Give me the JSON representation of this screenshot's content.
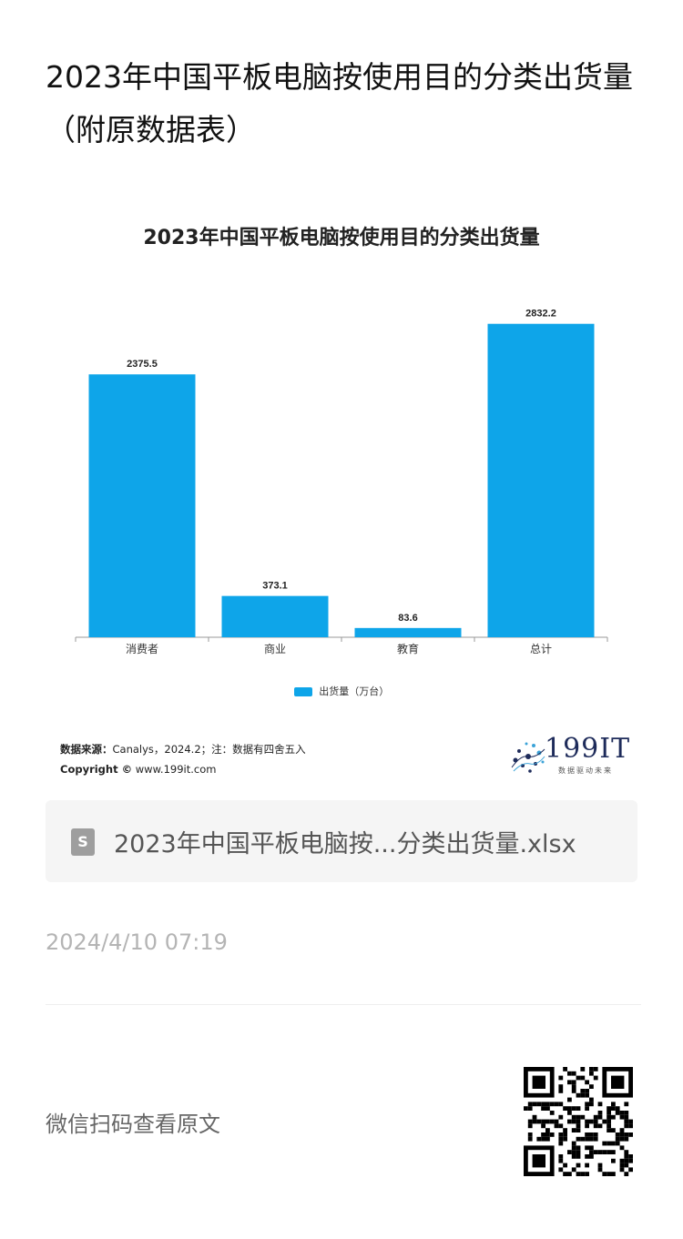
{
  "page": {
    "title": "2023年中国平板电脑按使用目的分类出货量（附原数据表）",
    "date": "2024/4/10 07:19",
    "qr_label": "微信扫码查看原文"
  },
  "chart_data": {
    "type": "bar",
    "title": "2023年中国平板电脑按使用目的分类出货量",
    "categories": [
      "消费者",
      "商业",
      "教育",
      "总计"
    ],
    "series": [
      {
        "name": "出货量（万台）",
        "values": [
          2375.5,
          373.1,
          83.6,
          2832.2
        ]
      }
    ],
    "ylim": [
      0,
      3200
    ],
    "grid": false,
    "legend_position": "bottom",
    "color": "#0ea5e9"
  },
  "source": {
    "label": "数据来源：",
    "text": "Canalys，2024.2；注：数据有四舍五入",
    "copyright_label": "Copyright ©",
    "copyright_text": "www.199it.com"
  },
  "logo": {
    "text": "199IT",
    "sub": "数据驱动未来"
  },
  "file": {
    "icon_glyph": "S",
    "name": "2023年中国平板电脑按...分类出货量.xlsx"
  }
}
